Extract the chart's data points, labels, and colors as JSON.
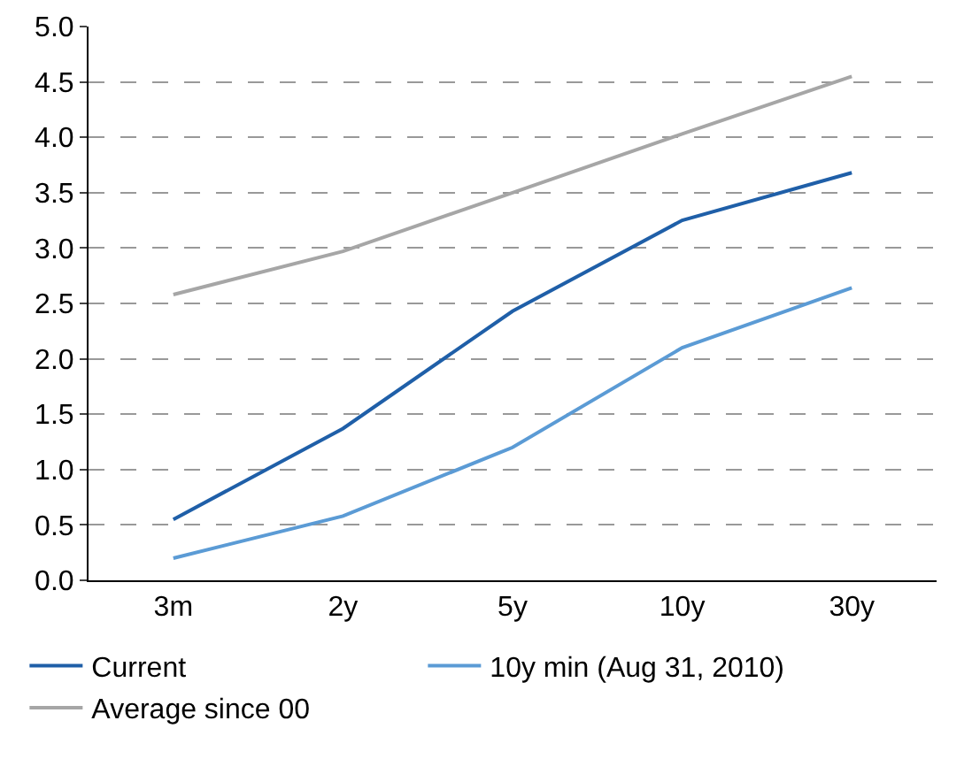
{
  "chart_data": {
    "type": "line",
    "categories": [
      "3m",
      "2y",
      "5y",
      "10y",
      "30y"
    ],
    "series": [
      {
        "name": "Current",
        "color": "#1f5fa8",
        "values": [
          0.55,
          1.37,
          2.43,
          3.25,
          3.68
        ]
      },
      {
        "name": "10y min (Aug 31, 2010)",
        "color": "#5b9bd5",
        "values": [
          0.2,
          0.58,
          1.2,
          2.1,
          2.64
        ]
      },
      {
        "name": "Average since 00",
        "color": "#a6a6a6",
        "values": [
          2.58,
          2.97,
          3.5,
          4.03,
          4.55
        ]
      }
    ],
    "ylim": [
      0,
      5
    ],
    "yticks": [
      {
        "value": 0,
        "label": "0.0"
      },
      {
        "value": 0.5,
        "label": "0.5"
      },
      {
        "value": 1,
        "label": "1.0"
      },
      {
        "value": 1.5,
        "label": "1.5"
      },
      {
        "value": 2,
        "label": "2.0"
      },
      {
        "value": 2.5,
        "label": "2.5"
      },
      {
        "value": 3,
        "label": "3.0"
      },
      {
        "value": 3.5,
        "label": "3.5"
      },
      {
        "value": 4,
        "label": "4.0"
      },
      {
        "value": 4.5,
        "label": "4.5"
      },
      {
        "value": 5,
        "label": "5.0"
      }
    ],
    "grid": "y",
    "legend": "bottom",
    "marker": "none",
    "line_style": "solid"
  }
}
